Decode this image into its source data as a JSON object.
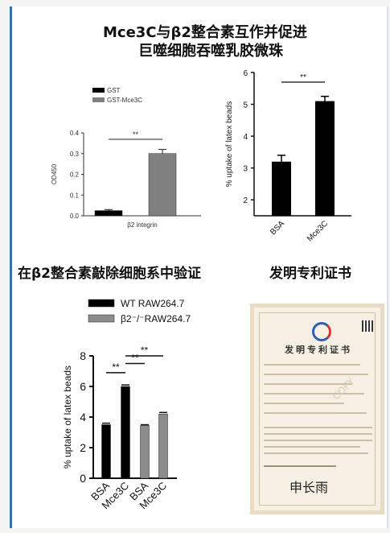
{
  "titles": {
    "top_line1": "Mce3C与β2整合素互作并促进",
    "top_line2": "巨噬细胞吞噬乳胶微珠",
    "section_left": "在β2整合素敲除细胞系中验证",
    "section_right": "发明专利证书"
  },
  "certificate": {
    "heading": "发明专利证书",
    "signature": "申长雨",
    "watermark": "COPY"
  },
  "chart_data": [
    {
      "type": "bar",
      "legend": [
        "GST",
        "GST-Mce3C"
      ],
      "colors": [
        "#000000",
        "#808080"
      ],
      "categories": [
        "β2 integrin"
      ],
      "series": [
        {
          "name": "GST",
          "values": [
            0.025
          ],
          "error": [
            0.005
          ]
        },
        {
          "name": "GST-Mce3C",
          "values": [
            0.3
          ],
          "error": [
            0.02
          ]
        }
      ],
      "ylabel": "OD450",
      "xlabel": "β2 integrin",
      "ylim": [
        0,
        0.4
      ],
      "yticks": [
        "0.0",
        "0.1",
        "0.2",
        "0.3",
        "0.4"
      ],
      "significance": [
        {
          "between": [
            "GST",
            "GST-Mce3C"
          ],
          "label": "**"
        }
      ]
    },
    {
      "type": "bar",
      "categories": [
        "BSA",
        "Mce3C"
      ],
      "values": [
        3.2,
        5.1
      ],
      "error": [
        0.2,
        0.15
      ],
      "colors": [
        "#000000",
        "#000000"
      ],
      "ylabel": "% uptake of latex beads",
      "ylim": [
        0,
        6
      ],
      "yticks": [
        "2",
        "3",
        "4",
        "5",
        "6"
      ],
      "significance": [
        {
          "between": [
            "BSA",
            "Mce3C"
          ],
          "label": "**"
        }
      ]
    },
    {
      "type": "bar",
      "legend": [
        "WT RAW264.7",
        "β2⁻/⁻RAW264.7"
      ],
      "legend_colors": [
        "#000000",
        "#8c8c8c"
      ],
      "categories": [
        "BSA",
        "Mce3C",
        "BSA",
        "Mce3C"
      ],
      "values": [
        3.5,
        6.0,
        3.45,
        4.2
      ],
      "error": [
        0.1,
        0.1,
        0.05,
        0.1
      ],
      "colors": [
        "#000000",
        "#000000",
        "#8c8c8c",
        "#8c8c8c"
      ],
      "ylabel": "% uptake of latex beads",
      "ylim": [
        0,
        8
      ],
      "yticks": [
        "0",
        "2",
        "4",
        "6",
        "8"
      ],
      "significance": [
        {
          "between": [
            0,
            1
          ],
          "label": "**"
        },
        {
          "between": [
            1,
            2
          ],
          "label": "**"
        },
        {
          "between": [
            1,
            3
          ],
          "label": "**"
        }
      ]
    }
  ]
}
